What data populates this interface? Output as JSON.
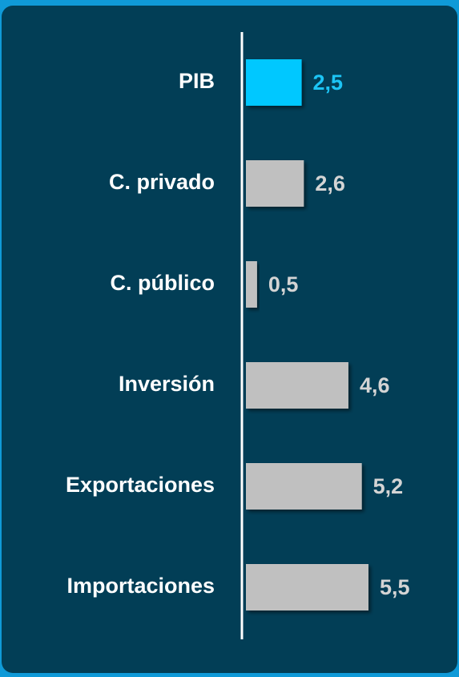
{
  "chart_data": {
    "type": "hbar",
    "categories": [
      "PIB",
      "C. privado",
      "C. público",
      "Inversión",
      "Exportaciones",
      "Importaciones"
    ],
    "values": [
      2.5,
      2.6,
      0.5,
      4.6,
      5.2,
      5.5
    ],
    "value_labels": [
      "2,5",
      "2,6",
      "0,5",
      "4,6",
      "5,2",
      "5,5"
    ],
    "colors": [
      "#00c8ff",
      "#c0c0c0",
      "#c0c0c0",
      "#c0c0c0",
      "#c0c0c0",
      "#c0c0c0"
    ],
    "label_colors": [
      "#1cc4f5",
      "#d4d4d4",
      "#d4d4d4",
      "#d4d4d4",
      "#d4d4d4",
      "#d4d4d4"
    ]
  }
}
